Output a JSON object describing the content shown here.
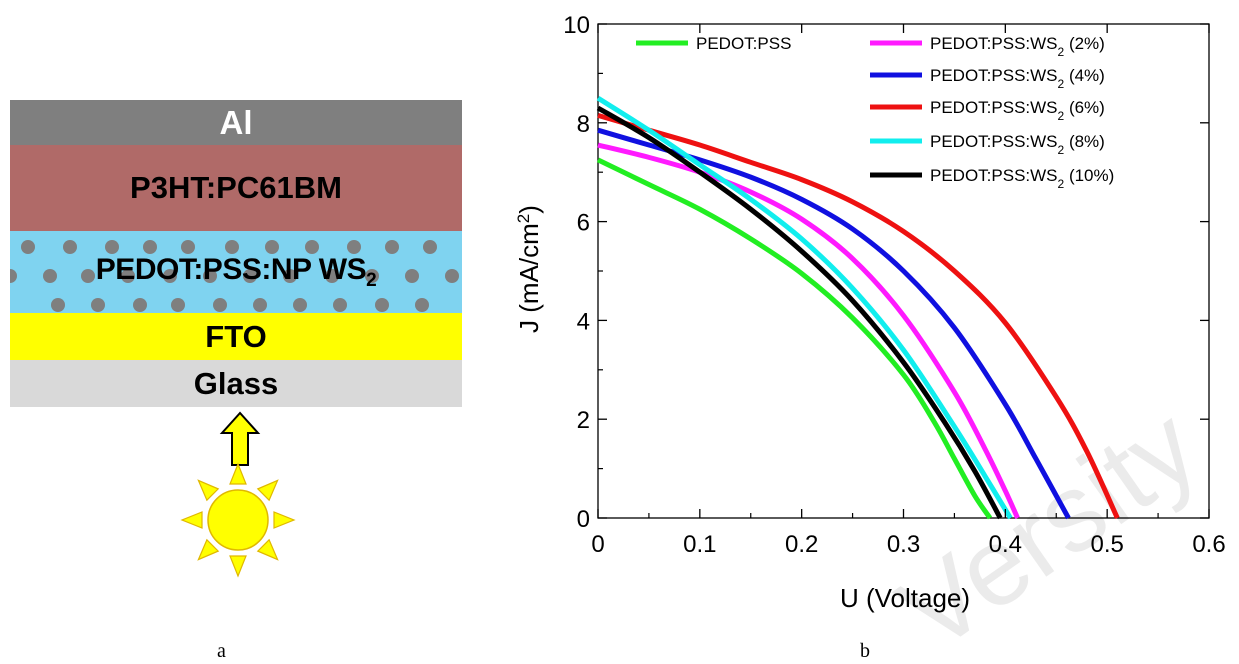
{
  "panel_labels": {
    "a": "a",
    "b": "b"
  },
  "device_stack": {
    "layers": [
      {
        "label": "Al",
        "color": "#7f7f7f",
        "text_color": "#ffffff"
      },
      {
        "label": "P3HT:PC61BM",
        "color": "#b06a68",
        "text_color": "#000000"
      },
      {
        "label": "PEDOT:PSS:NP WS",
        "subscript": "2",
        "color": "#7fd3f0",
        "text_color": "#000000"
      },
      {
        "label": "FTO",
        "color": "#ffff00",
        "text_color": "#000000"
      },
      {
        "label": "Glass",
        "color": "#d9d9d9",
        "text_color": "#000000"
      }
    ],
    "illumination_icons": [
      "arrow-up-icon",
      "sun-icon"
    ],
    "nanoparticle_color": "#7f7f7f",
    "sun_color": "#ffff00",
    "sun_outline": "#e0b800"
  },
  "chart_data": {
    "type": "line",
    "title": "",
    "xlabel": "U (Voltage)",
    "ylabel": "J (mA/cm²)",
    "xlim": [
      0,
      0.6
    ],
    "ylim": [
      0,
      10
    ],
    "xticks": [
      "0",
      "0.1",
      "0.2",
      "0.3",
      "0.4",
      "0.5",
      "0.6"
    ],
    "yticks": [
      "0",
      "2",
      "4",
      "6",
      "8",
      "10"
    ],
    "grid": false,
    "legend_position": "top",
    "series": [
      {
        "name": "PEDOT:PSS",
        "legend_base": "PEDOT:PSS",
        "legend_sub": "",
        "legend_suffix": "",
        "color": "#22ee22",
        "x": [
          0,
          0.05,
          0.1,
          0.15,
          0.2,
          0.25,
          0.3,
          0.33,
          0.35,
          0.37,
          0.385
        ],
        "y": [
          7.25,
          6.75,
          6.25,
          5.65,
          4.95,
          4.05,
          2.9,
          1.95,
          1.2,
          0.45,
          0
        ]
      },
      {
        "name": "PEDOT:PSS:WS2 (2%)",
        "legend_base": "PEDOT:PSS:WS",
        "legend_sub": "2",
        "legend_suffix": " (2%)",
        "color": "#ff1aff",
        "x": [
          0,
          0.05,
          0.1,
          0.15,
          0.2,
          0.25,
          0.3,
          0.35,
          0.38,
          0.4,
          0.412
        ],
        "y": [
          7.55,
          7.3,
          7.0,
          6.6,
          6.05,
          5.25,
          4.1,
          2.55,
          1.4,
          0.55,
          0
        ]
      },
      {
        "name": "PEDOT:PSS:WS2 (4%)",
        "legend_base": "PEDOT:PSS:WS",
        "legend_sub": "2",
        "legend_suffix": " (4%)",
        "color": "#1010e0",
        "x": [
          0,
          0.05,
          0.1,
          0.15,
          0.2,
          0.25,
          0.3,
          0.35,
          0.4,
          0.43,
          0.462
        ],
        "y": [
          7.85,
          7.55,
          7.25,
          6.9,
          6.45,
          5.85,
          5.0,
          3.85,
          2.3,
          1.2,
          0
        ]
      },
      {
        "name": "PEDOT:PSS:WS2 (6%)",
        "legend_base": "PEDOT:PSS:WS",
        "legend_sub": "2",
        "legend_suffix": " (6%)",
        "color": "#ee1111",
        "x": [
          0,
          0.05,
          0.1,
          0.15,
          0.2,
          0.25,
          0.3,
          0.35,
          0.4,
          0.45,
          0.48,
          0.51
        ],
        "y": [
          8.15,
          7.85,
          7.55,
          7.2,
          6.85,
          6.4,
          5.8,
          5.0,
          3.95,
          2.45,
          1.35,
          0
        ]
      },
      {
        "name": "PEDOT:PSS:WS2 (8%)",
        "legend_base": "PEDOT:PSS:WS",
        "legend_sub": "2",
        "legend_suffix": " (8%)",
        "color": "#11eeee",
        "x": [
          0,
          0.05,
          0.1,
          0.15,
          0.2,
          0.25,
          0.3,
          0.35,
          0.38,
          0.405
        ],
        "y": [
          8.5,
          7.85,
          7.15,
          6.45,
          5.65,
          4.65,
          3.4,
          1.85,
          0.85,
          0
        ]
      },
      {
        "name": "PEDOT:PSS:WS2 (10%)",
        "legend_base": "PEDOT:PSS:WS",
        "legend_sub": "2",
        "legend_suffix": " (10%)",
        "color": "#000000",
        "x": [
          0,
          0.05,
          0.1,
          0.15,
          0.2,
          0.25,
          0.3,
          0.34,
          0.37,
          0.395
        ],
        "y": [
          8.3,
          7.7,
          7.0,
          6.25,
          5.4,
          4.4,
          3.15,
          1.95,
          0.95,
          0
        ]
      }
    ],
    "watermark": "Versity"
  }
}
